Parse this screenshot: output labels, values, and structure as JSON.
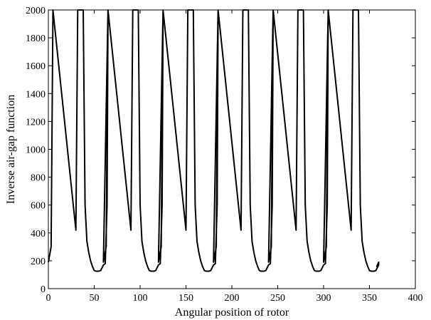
{
  "chart_data": {
    "type": "line",
    "title": "",
    "xlabel": "Angular position of rotor",
    "ylabel": "Inverse air-gap function",
    "xlim": [
      0,
      400
    ],
    "ylim": [
      0,
      2000
    ],
    "xticks": [
      0,
      50,
      100,
      150,
      200,
      250,
      300,
      350,
      400
    ],
    "yticks": [
      0,
      200,
      400,
      600,
      800,
      1000,
      1200,
      1400,
      1600,
      1800,
      2000
    ],
    "grid": false,
    "legend": "none",
    "box": true,
    "period_deg": 60,
    "series": [
      {
        "color": "#000000",
        "x": [
          0,
          3,
          5,
          30,
          32,
          35,
          38,
          40,
          42,
          44,
          46,
          48,
          50,
          52,
          55,
          57,
          60,
          62,
          64,
          65
        ],
        "y": [
          190,
          300,
          2000,
          420,
          2000,
          2000,
          2000,
          600,
          340,
          260,
          200,
          160,
          130,
          125,
          125,
          130,
          170,
          180,
          600,
          2000
        ]
      }
    ]
  }
}
